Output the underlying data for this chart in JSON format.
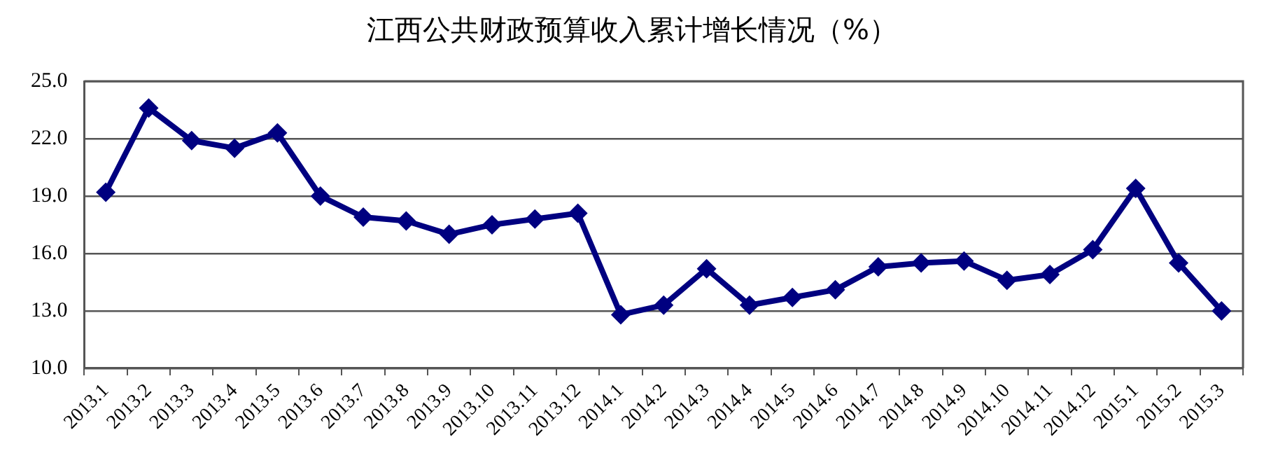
{
  "chart_data": {
    "type": "line",
    "title": "江西公共财政预算收入累计增长情况（%）",
    "categories": [
      "2013.1",
      "2013.2",
      "2013.3",
      "2013.4",
      "2013.5",
      "2013.6",
      "2013.7",
      "2013.8",
      "2013.9",
      "2013.10",
      "2013.11",
      "2013.12",
      "2014.1",
      "2014.2",
      "2014.3",
      "2014.4",
      "2014.5",
      "2014.6",
      "2014.7",
      "2014.8",
      "2014.9",
      "2014.10",
      "2014.11",
      "2014.12",
      "2015.1",
      "2015.2",
      "2015.3"
    ],
    "series": [
      {
        "color": "#000080",
        "values": [
          19.2,
          23.6,
          21.9,
          21.5,
          22.3,
          19.0,
          17.9,
          17.7,
          17.0,
          17.5,
          17.8,
          18.1,
          12.8,
          13.3,
          15.2,
          13.3,
          13.7,
          14.1,
          15.3,
          15.5,
          15.6,
          14.6,
          14.9,
          16.2,
          19.4,
          15.5,
          13.0
        ]
      }
    ],
    "ylim": [
      10,
      25
    ],
    "yticks": [
      {
        "value": 10,
        "label": "10.0"
      },
      {
        "value": 13,
        "label": "13.0"
      },
      {
        "value": 16,
        "label": "16.0"
      },
      {
        "value": 19,
        "label": "19.0"
      },
      {
        "value": 22,
        "label": "22.0"
      },
      {
        "value": 25,
        "label": "25.0"
      }
    ],
    "grid": "y",
    "marker": "diamond",
    "line_style": "solid",
    "legend": false
  }
}
